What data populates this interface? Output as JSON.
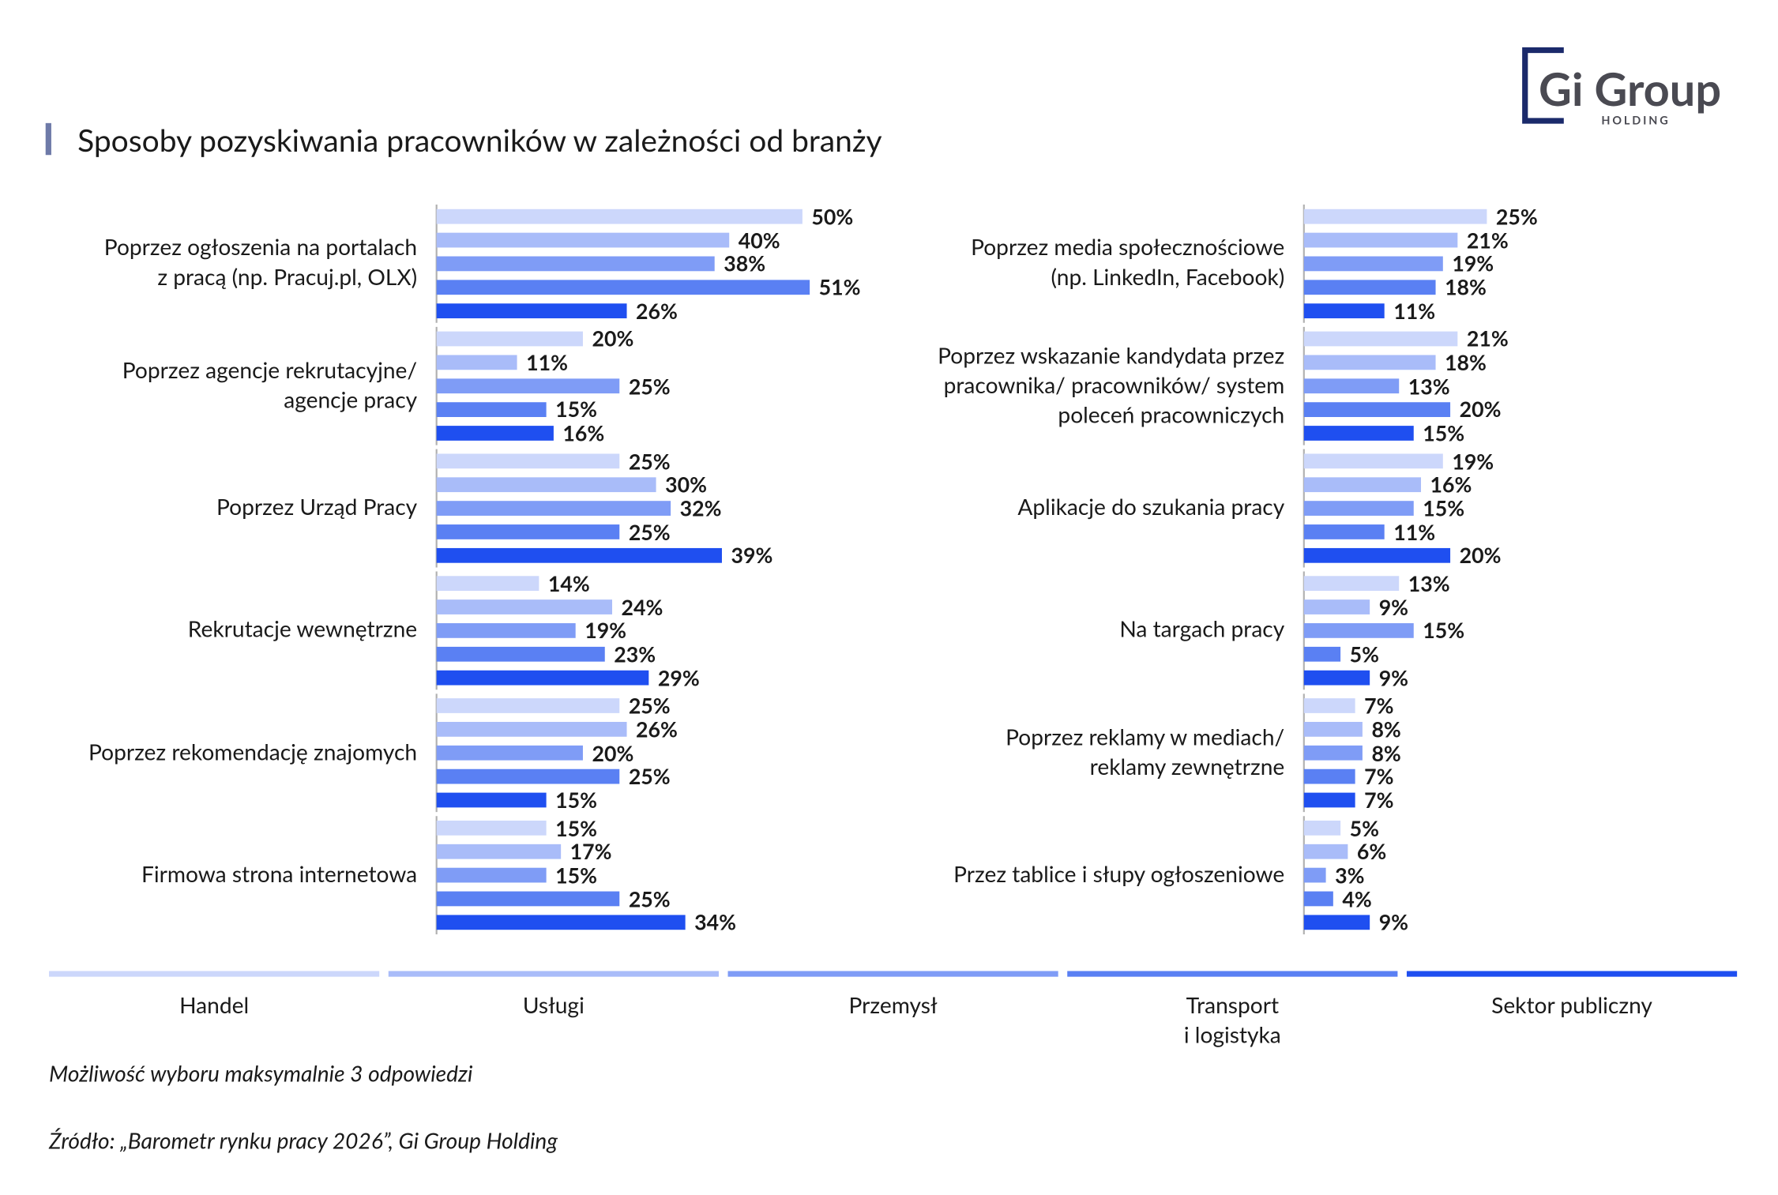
{
  "chart_data": {
    "type": "bar",
    "orientation": "horizontal",
    "title": "Sposoby pozyskiwania pracowników w zależności od branży",
    "logo": {
      "name": "Gi Group",
      "sub": "HOLDING"
    },
    "categories": [
      "Poprzez ogłoszenia na portalach\nz pracą (np. Pracuj.pl, OLX)",
      "Poprzez agencje rekrutacyjne/\nagencje pracy",
      "Poprzez Urząd Pracy",
      "Rekrutacje wewnętrzne",
      "Poprzez rekomendację znajomych",
      "Firmowa strona internetowa",
      "Poprzez media społecznościowe\n(np. LinkedIn, Facebook)",
      "Poprzez wskazanie kandydata przez\npracownika/ pracowników/ system\npoleceń pracowniczych",
      "Aplikacje do szukania pracy",
      "Na targach pracy",
      "Poprzez reklamy w mediach/\nreklamy zewnętrzne",
      "Przez tablice i słupy ogłoszeniowe"
    ],
    "series": [
      {
        "name": "Handel",
        "color": "#ccd7fb",
        "values": [
          50,
          20,
          25,
          14,
          25,
          15,
          25,
          21,
          19,
          13,
          7,
          5
        ],
        "value_labels": [
          "50%",
          "20%",
          "25%",
          "14%",
          "25%",
          "15%",
          "25%",
          "21%",
          "19%",
          "13%",
          "7%",
          "5%"
        ]
      },
      {
        "name": "Usługi",
        "color": "#a9bcf9",
        "values": [
          40,
          11,
          30,
          24,
          26,
          17,
          21,
          18,
          16,
          9,
          8,
          6
        ],
        "value_labels": [
          "40%",
          "11%",
          "30%",
          "24%",
          "26%",
          "17%",
          "21%",
          "18%",
          "16%",
          "9%",
          "8%",
          "6%"
        ]
      },
      {
        "name": "Przemysł",
        "color": "#7f9cf6",
        "values": [
          38,
          25,
          32,
          19,
          20,
          15,
          19,
          13,
          15,
          15,
          8,
          3
        ],
        "value_labels": [
          "38%",
          "25%",
          "32%",
          "19%",
          "20%",
          "15%",
          "19%",
          "13%",
          "15%",
          "15%",
          "8%",
          "3%"
        ]
      },
      {
        "name": "Transport\ni logistyka",
        "color": "#5a80f3",
        "values": [
          51,
          15,
          25,
          23,
          25,
          25,
          18,
          20,
          11,
          5,
          7,
          4
        ],
        "value_labels": [
          "51%",
          "15%",
          "25%",
          "23%",
          "25%",
          "25%",
          "18%",
          "20%",
          "11%",
          "5%",
          "7%",
          "4%"
        ]
      },
      {
        "name": "Sektor publiczny",
        "color": "#1f4ff0",
        "values": [
          26,
          16,
          39,
          29,
          15,
          34,
          11,
          15,
          20,
          9,
          7,
          9
        ],
        "value_labels": [
          "26%",
          "16%",
          "39%",
          "29%",
          "15%",
          "34%",
          "11%",
          "15%",
          "20%",
          "9%",
          "7%",
          "9%"
        ]
      }
    ],
    "note": "Możliwość wyboru maksymalnie 3 odpowiedzi",
    "source": "Źródło: „Barometr rynku pracy 2026”, Gi Group Holding"
  }
}
